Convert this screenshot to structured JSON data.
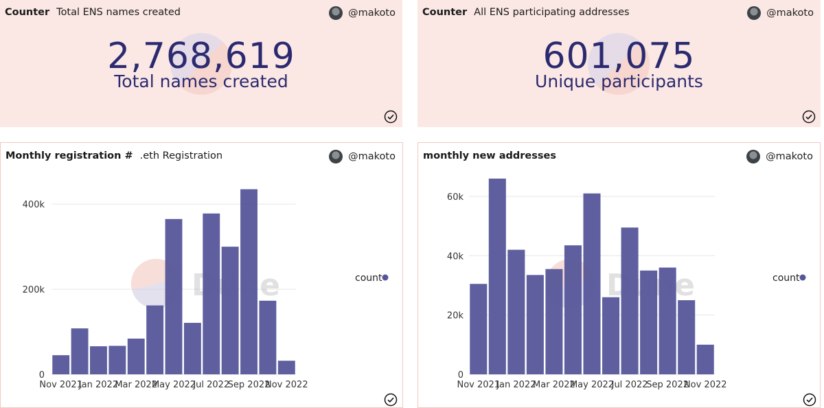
{
  "panels": {
    "names_counter": {
      "type_label": "Counter",
      "title": "Total ENS names created",
      "user": "@makoto",
      "value": "2,768,619",
      "caption": "Total names created"
    },
    "addresses_counter": {
      "type_label": "Counter",
      "title": "All ENS participating addresses",
      "user": "@makoto",
      "value": "601,075",
      "caption": "Unique participants"
    },
    "monthly_registration": {
      "type_label": "Monthly registration #",
      "title": ".eth Registration",
      "user": "@makoto",
      "watermark": "Dune",
      "legend": "count"
    },
    "monthly_addresses": {
      "title": "monthly new addresses",
      "user": "@makoto",
      "watermark": "Dune",
      "legend": "count"
    }
  },
  "colors": {
    "bar": "#56569a",
    "counter_bg": "#fbe8e4",
    "number": "#2b2a70"
  },
  "chart_data": [
    {
      "type": "bar",
      "title": ".eth Registration",
      "categories": [
        "Nov 2021",
        "Dec 2021",
        "Jan 2022",
        "Feb 2022",
        "Mar 2022",
        "Apr 2022",
        "May 2022",
        "Jun 2022",
        "Jul 2022",
        "Aug 2022",
        "Sep 2022",
        "Oct 2022",
        "Nov 2022"
      ],
      "tick_labels": [
        "Nov 2021",
        "Jan 2022",
        "Mar 2022",
        "May 2022",
        "Jul 2022",
        "Sep 2022",
        "Nov 2022"
      ],
      "series": [
        {
          "name": "count",
          "values": [
            45000,
            108000,
            66000,
            67000,
            84000,
            162000,
            365000,
            121000,
            378000,
            300000,
            435000,
            173000,
            32000
          ]
        }
      ],
      "yticks": [
        0,
        200000,
        400000
      ],
      "ytick_labels": [
        "0",
        "200k",
        "400k"
      ],
      "ylim": [
        0,
        460000
      ],
      "grid": true,
      "legend": "right"
    },
    {
      "type": "bar",
      "title": "monthly new addresses",
      "categories": [
        "Nov 2021",
        "Dec 2021",
        "Jan 2022",
        "Feb 2022",
        "Mar 2022",
        "Apr 2022",
        "May 2022",
        "Jun 2022",
        "Jul 2022",
        "Aug 2022",
        "Sep 2022",
        "Oct 2022",
        "Nov 2022"
      ],
      "tick_labels": [
        "Nov 2021",
        "Jan 2022",
        "Mar 2022",
        "May 2022",
        "Jul 2022",
        "Sep 2022",
        "Nov 2022"
      ],
      "series": [
        {
          "name": "count",
          "values": [
            30500,
            66000,
            42000,
            33500,
            35500,
            43500,
            61000,
            26000,
            49500,
            35000,
            36000,
            25000,
            10000
          ]
        }
      ],
      "yticks": [
        0,
        20000,
        40000,
        60000
      ],
      "ytick_labels": [
        "0",
        "20k",
        "40k",
        "60k"
      ],
      "ylim": [
        0,
        66000
      ],
      "grid": true,
      "legend": "right"
    }
  ]
}
